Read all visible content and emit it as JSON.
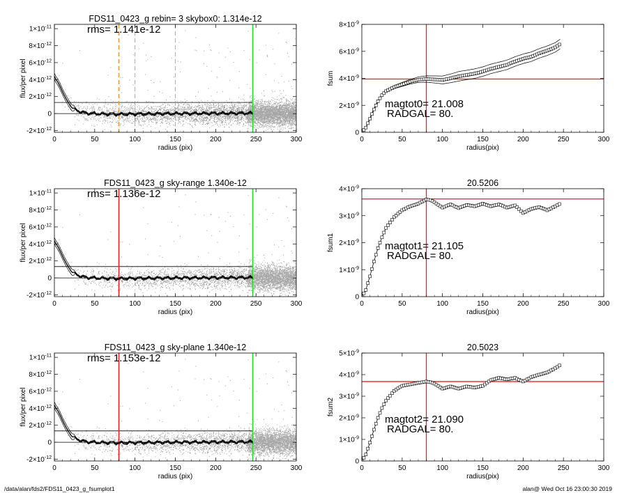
{
  "footer": {
    "path": "/data/alan/fds2/FDS11_0423_g_fsumplot1",
    "stamp": "alan@  Wed Oct 16 23:00:30 2019"
  },
  "chart_data": [
    {
      "id": "profile1",
      "type": "scatter",
      "title": "FDS11_0423_g rebin= 3    skybox0:  1.314e-12",
      "rms": "rms= 1.141e-12",
      "xlabel": "radius (pix)",
      "ylabel": "flux/per pixel",
      "xlim": [
        0,
        300
      ],
      "ylim": [
        -2.2e-12,
        1.05e-11
      ],
      "xticks": [
        "0",
        "50",
        "100",
        "150",
        "200",
        "250",
        "300"
      ],
      "yticks": [
        {
          "v": -2e-12,
          "m": "-2",
          "e": "-12"
        },
        {
          "v": 0,
          "m": "0",
          "e": ""
        },
        {
          "v": 2e-12,
          "m": "2",
          "e": "-12"
        },
        {
          "v": 4e-12,
          "m": "4",
          "e": "-12"
        },
        {
          "v": 6e-12,
          "m": "6",
          "e": "-12"
        },
        {
          "v": 8e-12,
          "m": "8",
          "e": "-12"
        },
        {
          "v": 1e-11,
          "m": "1",
          "e": "-11"
        }
      ],
      "hlines": [
        1.314e-12,
        0
      ],
      "vlines": [
        {
          "x": 80,
          "color": "#f39c2e",
          "style": "dashed",
          "width": 1.6
        },
        {
          "x": 100,
          "color": "#999999",
          "style": "dashed",
          "width": 0.8
        },
        {
          "x": 150,
          "color": "#999999",
          "style": "dashed",
          "width": 0.8
        },
        {
          "x": 246,
          "color": "#22dd22",
          "style": "solid",
          "width": 1.6
        }
      ],
      "profile": {
        "x": [
          0,
          2,
          5,
          8,
          12,
          16,
          20,
          25,
          30,
          35,
          40,
          50,
          60,
          80,
          100,
          150,
          200,
          246
        ],
        "y": [
          4.4e-12,
          4e-12,
          3.6e-12,
          3e-12,
          2.2e-12,
          1.5e-12,
          9e-13,
          5e-13,
          3e-13,
          1.5e-13,
          5e-14,
          0,
          -5e-14,
          -8e-14,
          -5e-14,
          0,
          3e-14,
          5e-14
        ]
      }
    },
    {
      "id": "profile2",
      "type": "scatter",
      "title": "FDS11_0423_g sky-range  1.340e-12",
      "rms": "rms= 1.136e-12",
      "xlabel": "radius (pix)",
      "ylabel": "flux/per pixel",
      "xlim": [
        0,
        300
      ],
      "ylim": [
        -2.2e-12,
        1.05e-11
      ],
      "xticks": [
        "0",
        "50",
        "100",
        "150",
        "200",
        "250",
        "300"
      ],
      "yticks": [
        {
          "v": -2e-12,
          "m": "-2",
          "e": "-12"
        },
        {
          "v": 0,
          "m": "0",
          "e": ""
        },
        {
          "v": 2e-12,
          "m": "2",
          "e": "-12"
        },
        {
          "v": 4e-12,
          "m": "4",
          "e": "-12"
        },
        {
          "v": 6e-12,
          "m": "6",
          "e": "-12"
        },
        {
          "v": 8e-12,
          "m": "8",
          "e": "-12"
        },
        {
          "v": 1e-11,
          "m": "1",
          "e": "-11"
        }
      ],
      "hlines": [
        1.34e-12,
        0
      ],
      "vlines": [
        {
          "x": 80,
          "color": "#e8201e",
          "style": "solid",
          "width": 1.6
        },
        {
          "x": 246,
          "color": "#22dd22",
          "style": "solid",
          "width": 1.6
        }
      ],
      "profile": {
        "x": [
          0,
          2,
          5,
          8,
          12,
          16,
          20,
          25,
          30,
          35,
          40,
          50,
          60,
          80,
          100,
          150,
          200,
          246
        ],
        "y": [
          4.4e-12,
          4e-12,
          3.6e-12,
          3e-12,
          2.2e-12,
          1.5e-12,
          9e-13,
          5e-13,
          3e-13,
          1.5e-13,
          5e-14,
          0,
          -5e-14,
          -8e-14,
          -5e-14,
          0,
          3e-14,
          5e-14
        ]
      }
    },
    {
      "id": "profile3",
      "type": "scatter",
      "title": "FDS11_0423_g sky-plane  1.340e-12",
      "rms": "rms= 1.153e-12",
      "xlabel": "radius (pix)",
      "ylabel": "flux/per pixel",
      "xlim": [
        0,
        300
      ],
      "ylim": [
        -2.2e-12,
        1.05e-11
      ],
      "xticks": [
        "0",
        "50",
        "100",
        "150",
        "200",
        "250",
        "300"
      ],
      "yticks": [
        {
          "v": -2e-12,
          "m": "-2",
          "e": "-12"
        },
        {
          "v": 0,
          "m": "0",
          "e": ""
        },
        {
          "v": 2e-12,
          "m": "2",
          "e": "-12"
        },
        {
          "v": 4e-12,
          "m": "4",
          "e": "-12"
        },
        {
          "v": 6e-12,
          "m": "6",
          "e": "-12"
        },
        {
          "v": 8e-12,
          "m": "8",
          "e": "-12"
        },
        {
          "v": 1e-11,
          "m": "1",
          "e": "-11"
        }
      ],
      "hlines": [
        1.34e-12,
        0
      ],
      "vlines": [
        {
          "x": 80,
          "color": "#e8201e",
          "style": "solid",
          "width": 1.6
        },
        {
          "x": 246,
          "color": "#22dd22",
          "style": "solid",
          "width": 1.6
        }
      ],
      "profile": {
        "x": [
          0,
          2,
          5,
          8,
          12,
          16,
          20,
          25,
          30,
          35,
          40,
          50,
          60,
          80,
          100,
          150,
          200,
          246
        ],
        "y": [
          4.4e-12,
          4e-12,
          3.6e-12,
          3e-12,
          2.2e-12,
          1.5e-12,
          9e-13,
          5e-13,
          3e-13,
          1.5e-13,
          5e-14,
          0,
          -5e-14,
          -8e-14,
          -5e-14,
          0,
          3e-14,
          5e-14
        ]
      }
    },
    {
      "id": "fsum0",
      "type": "line",
      "title": "",
      "ylabel": "fsum",
      "xlabel": "radius(pix)",
      "xlim": [
        0,
        300
      ],
      "ylim": [
        0,
        8e-09
      ],
      "xticks": [
        "0",
        "50",
        "100",
        "150",
        "200",
        "250",
        "300"
      ],
      "yticks": [
        {
          "v": 0,
          "m": "0",
          "e": ""
        },
        {
          "v": 2e-09,
          "m": "2",
          "e": "-9"
        },
        {
          "v": 4e-09,
          "m": "4",
          "e": "-9"
        },
        {
          "v": 6e-09,
          "m": "6",
          "e": "-9"
        },
        {
          "v": 8e-09,
          "m": "8",
          "e": "-9"
        }
      ],
      "annotation_lines": [
        "magtot0=  21.008",
        "RADGAL=    80."
      ],
      "crosshair": {
        "x": 80,
        "y": 3.95e-09
      },
      "band": 3.5e-10,
      "curve": {
        "x": [
          0,
          5,
          10,
          15,
          20,
          25,
          30,
          40,
          50,
          60,
          70,
          80,
          90,
          100,
          110,
          120,
          130,
          140,
          150,
          160,
          170,
          180,
          190,
          200,
          210,
          220,
          230,
          240,
          246
        ],
        "y": [
          0,
          3.5e-10,
          1e-09,
          1.7e-09,
          2.3e-09,
          2.75e-09,
          3.05e-09,
          3.35e-09,
          3.55e-09,
          3.75e-09,
          3.9e-09,
          3.95e-09,
          3.92e-09,
          3.88e-09,
          4e-09,
          4.15e-09,
          4.25e-09,
          4.35e-09,
          4.5e-09,
          4.7e-09,
          4.85e-09,
          5e-09,
          5.25e-09,
          5.45e-09,
          5.6e-09,
          5.85e-09,
          6.05e-09,
          6.3e-09,
          6.55e-09
        ]
      }
    },
    {
      "id": "fsum1",
      "type": "line",
      "title": "20.5206",
      "ylabel": "fsum1",
      "xlabel": "radius(pix)",
      "xlim": [
        0,
        300
      ],
      "ylim": [
        0,
        4e-09
      ],
      "xticks": [
        "0",
        "50",
        "100",
        "150",
        "200",
        "250",
        "300"
      ],
      "yticks": [
        {
          "v": 0,
          "m": "0",
          "e": ""
        },
        {
          "v": 1e-09,
          "m": "1",
          "e": "-9"
        },
        {
          "v": 2e-09,
          "m": "2",
          "e": "-9"
        },
        {
          "v": 3e-09,
          "m": "3",
          "e": "-9"
        },
        {
          "v": 4e-09,
          "m": "4",
          "e": "-9"
        }
      ],
      "annotation_lines": [
        "magtot1=  21.105",
        "RADGAL=    80."
      ],
      "crosshair": {
        "x": 80,
        "y": 3.62e-09
      },
      "curve": {
        "x": [
          0,
          5,
          10,
          15,
          20,
          25,
          30,
          40,
          50,
          60,
          70,
          80,
          85,
          90,
          100,
          110,
          120,
          130,
          140,
          150,
          160,
          170,
          180,
          190,
          200,
          210,
          220,
          230,
          240,
          246
        ],
        "y": [
          0,
          2.5e-10,
          7.5e-10,
          1.3e-09,
          1.8e-09,
          2.2e-09,
          2.55e-09,
          2.95e-09,
          3.2e-09,
          3.35e-09,
          3.45e-09,
          3.6e-09,
          3.58e-09,
          3.5e-09,
          3.3e-09,
          3.42e-09,
          3.28e-09,
          3.4e-09,
          3.35e-09,
          3.45e-09,
          3.35e-09,
          3.42e-09,
          3.3e-09,
          3.38e-09,
          3.1e-09,
          3.25e-09,
          3.32e-09,
          3.2e-09,
          3.35e-09,
          3.45e-09
        ]
      }
    },
    {
      "id": "fsum2",
      "type": "line",
      "title": "20.5023",
      "ylabel": "fsum2",
      "xlabel": "radius(pix)",
      "xlim": [
        0,
        300
      ],
      "ylim": [
        0,
        5e-09
      ],
      "xticks": [
        "0",
        "50",
        "100",
        "150",
        "200",
        "250",
        "300"
      ],
      "yticks": [
        {
          "v": 0,
          "m": "0",
          "e": ""
        },
        {
          "v": 1e-09,
          "m": "1",
          "e": "-9"
        },
        {
          "v": 2e-09,
          "m": "2",
          "e": "-9"
        },
        {
          "v": 3e-09,
          "m": "3",
          "e": "-9"
        },
        {
          "v": 4e-09,
          "m": "4",
          "e": "-9"
        },
        {
          "v": 5e-09,
          "m": "5",
          "e": "-9"
        }
      ],
      "annotation_lines": [
        "magtot2=  21.090",
        "RADGAL=    80."
      ],
      "crosshair": {
        "x": 80,
        "y": 3.68e-09
      },
      "curve": {
        "x": [
          0,
          5,
          10,
          15,
          20,
          25,
          30,
          40,
          50,
          60,
          70,
          80,
          85,
          90,
          100,
          110,
          120,
          130,
          140,
          150,
          160,
          170,
          180,
          190,
          200,
          210,
          220,
          230,
          240,
          246
        ],
        "y": [
          0,
          3e-10,
          8.5e-10,
          1.45e-09,
          2e-09,
          2.45e-09,
          2.8e-09,
          3.25e-09,
          3.48e-09,
          3.55e-09,
          3.62e-09,
          3.68e-09,
          3.65e-09,
          3.58e-09,
          3.35e-09,
          3.45e-09,
          3.35e-09,
          3.45e-09,
          3.4e-09,
          3.48e-09,
          3.75e-09,
          3.85e-09,
          3.78e-09,
          3.85e-09,
          3.68e-09,
          3.88e-09,
          4e-09,
          4.1e-09,
          4.3e-09,
          4.45e-09
        ]
      }
    }
  ]
}
